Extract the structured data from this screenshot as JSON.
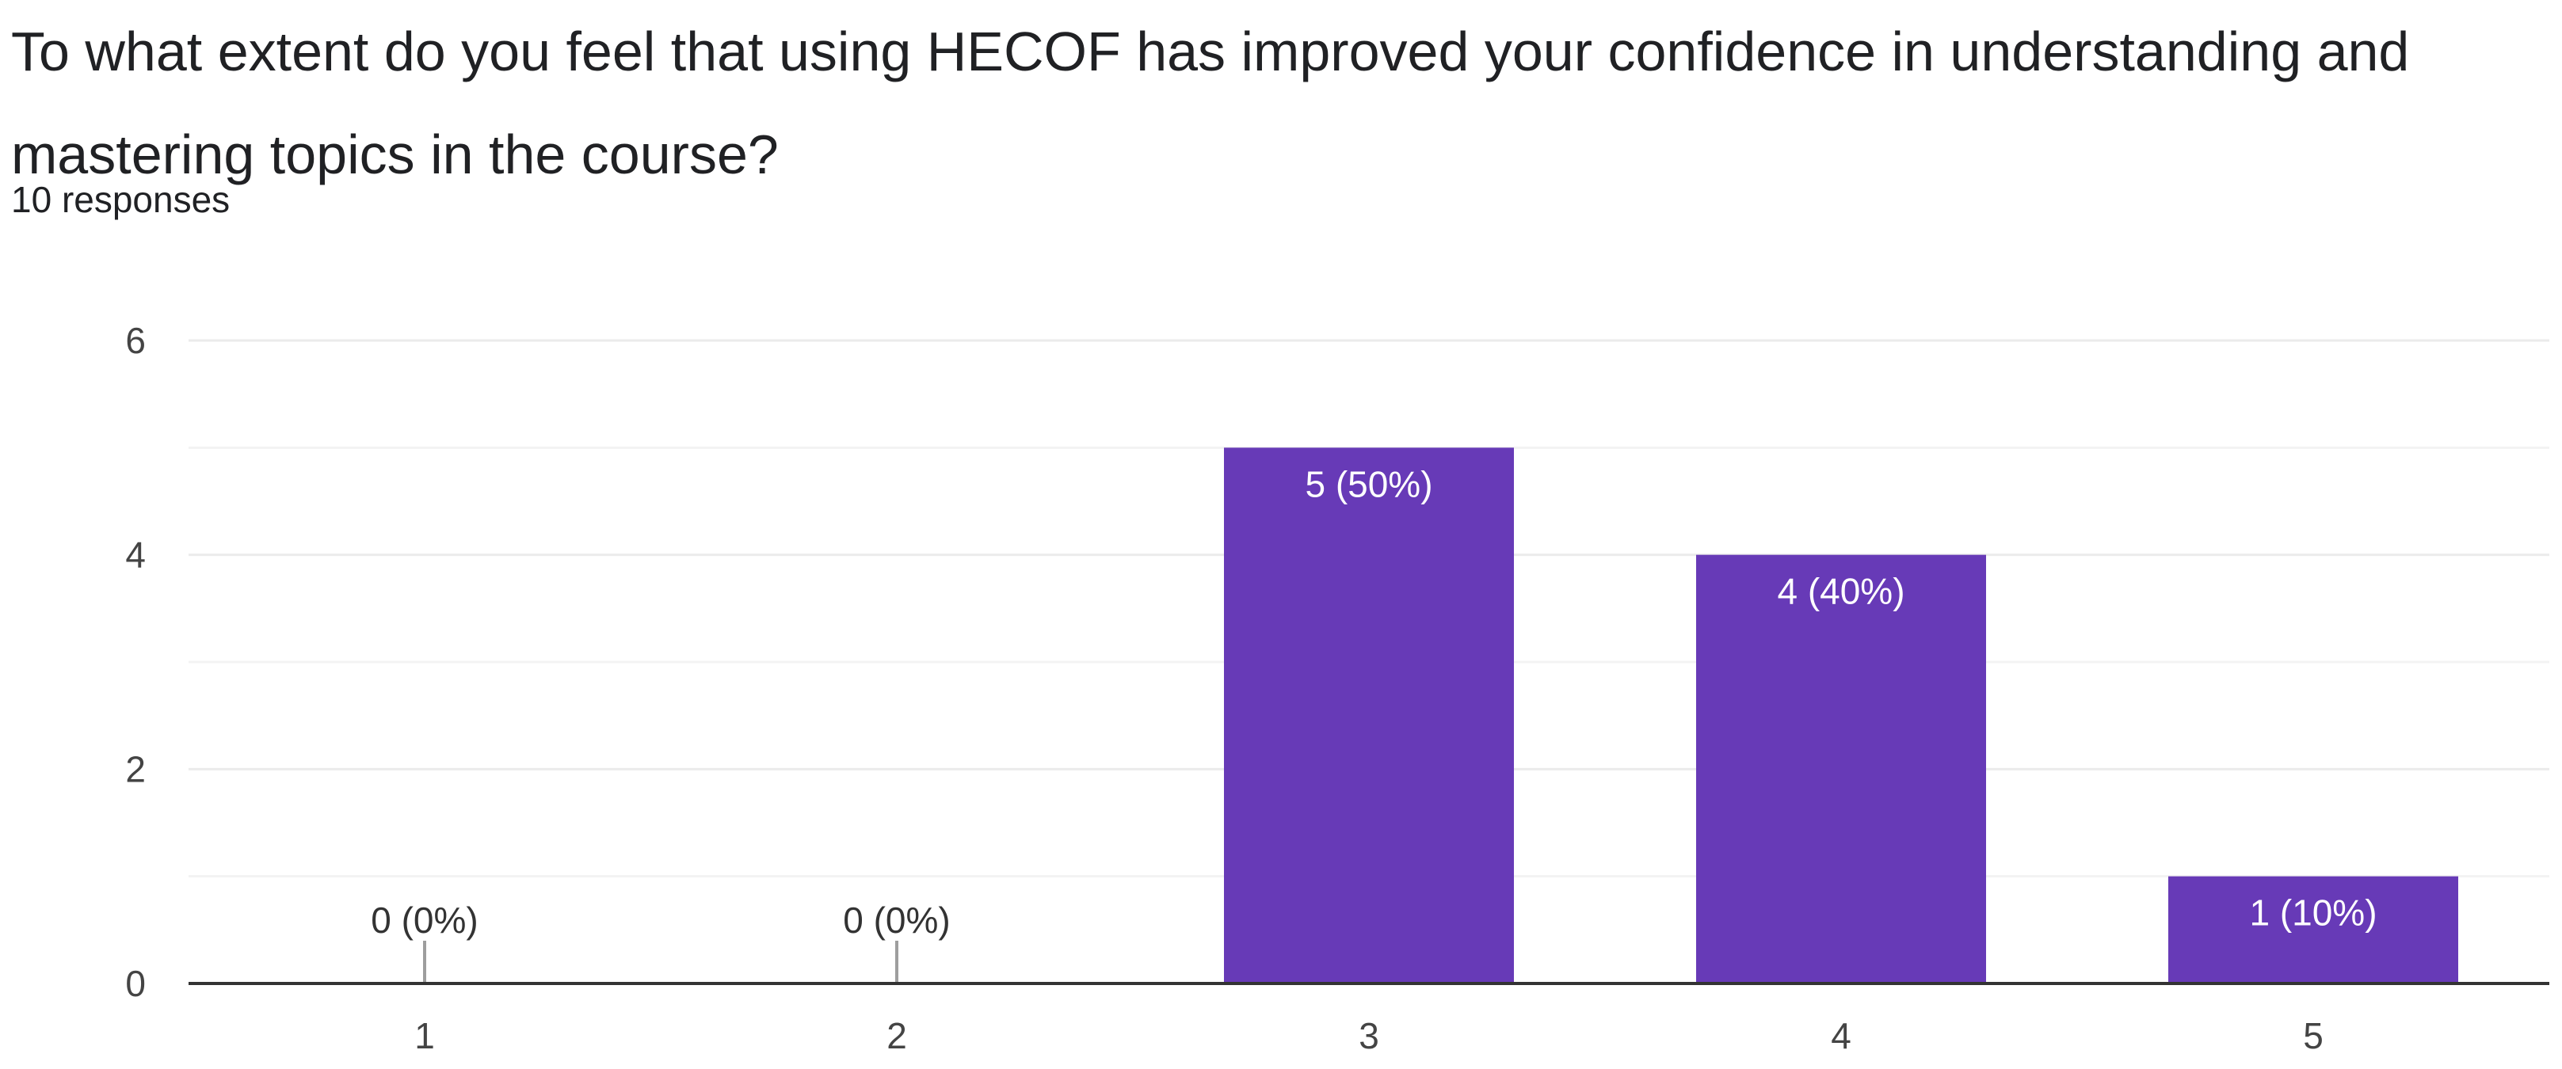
{
  "question": {
    "title": "To what extent do you feel that using HECOF has improved your confidence in understanding and mastering topics in the course?",
    "response_count": "10 responses"
  },
  "colors": {
    "bar": "#673ab7",
    "grid": "#ebebeb",
    "axis": "#333333",
    "label_inside": "#ffffff",
    "label_outside": "#333333",
    "marker": "#9e9e9e"
  },
  "chart_data": {
    "type": "bar",
    "categories": [
      "1",
      "2",
      "3",
      "4",
      "5"
    ],
    "values": [
      0,
      0,
      5,
      4,
      1
    ],
    "data_labels": [
      "0 (0%)",
      "0 (0%)",
      "5 (50%)",
      "4 (40%)",
      "1 (10%)"
    ],
    "ylim": [
      0,
      6
    ],
    "yticks": [
      0,
      2,
      4,
      6
    ],
    "minor_gridlines": [
      1,
      3,
      5
    ],
    "grid": true,
    "legend": "none",
    "xlabel": "",
    "ylabel": ""
  }
}
